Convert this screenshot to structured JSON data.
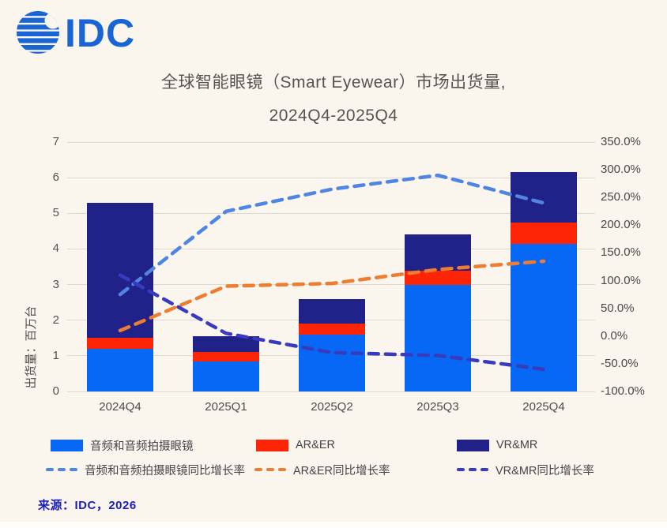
{
  "header": {
    "logo_text": "IDC",
    "title_line1": "全球智能眼镜（Smart Eyewear）市场出货量,",
    "title_line2": "2024Q4-2025Q4"
  },
  "footer": {
    "source": "来源：IDC，2026"
  },
  "chart_data": {
    "type": "bar",
    "subtype": "stacked-bar-with-lines-combo",
    "title": "全球智能眼镜（Smart Eyewear）市场出货量, 2024Q4-2025Q4",
    "categories": [
      "2024Q4",
      "2025Q1",
      "2025Q2",
      "2025Q3",
      "2025Q4"
    ],
    "bar_series": [
      {
        "name": "音频和音频拍摄眼镜",
        "color_key": "bar_blue",
        "values": [
          1.2,
          0.85,
          1.6,
          3.0,
          4.15
        ]
      },
      {
        "name": "AR&ER",
        "color_key": "bar_red",
        "values": [
          0.3,
          0.25,
          0.3,
          0.4,
          0.6
        ]
      },
      {
        "name": "VR&MR",
        "color_key": "bar_navy",
        "values": [
          3.8,
          0.45,
          0.7,
          1.0,
          1.4
        ]
      }
    ],
    "bar_totals": [
      5.3,
      1.55,
      2.6,
      4.4,
      6.15
    ],
    "line_series": [
      {
        "name": "音频和音频拍摄眼镜同比增长率",
        "color_key": "line_lightblue",
        "values_pct": [
          75,
          225,
          265,
          290,
          240
        ]
      },
      {
        "name": "AR&ER同比增长率",
        "color_key": "line_orange",
        "values_pct": [
          10,
          90,
          95,
          120,
          135
        ]
      },
      {
        "name": "VR&MR同比增长率",
        "color_key": "line_navy",
        "values_pct": [
          110,
          5,
          -30,
          -35,
          -60
        ]
      }
    ],
    "left_axis": {
      "label": "出货量：百万台",
      "min": 0,
      "max": 7,
      "ticks": [
        "7",
        "6",
        "5",
        "4",
        "3",
        "2",
        "1",
        "0"
      ]
    },
    "right_axis": {
      "min": -100,
      "max": 350,
      "ticks": [
        "350.0%",
        "300.0%",
        "250.0%",
        "200.0%",
        "150.0%",
        "100.0%",
        "50.0%",
        "0.0%",
        "-50.0%",
        "-100.0%"
      ]
    },
    "grid": true,
    "legend_position": "bottom"
  },
  "colors": {
    "background": "#faf6ee",
    "bar_blue": "#0668f4",
    "bar_red": "#fd2506",
    "bar_navy": "#21218a",
    "line_lightblue": "#4f86e3",
    "line_orange": "#ed7d31",
    "line_navy": "#3a3abf",
    "grid": "#ded9d1",
    "logo_blue": "#1a65d4",
    "title_text": "#57544f",
    "source_text": "#1d1dbb"
  }
}
